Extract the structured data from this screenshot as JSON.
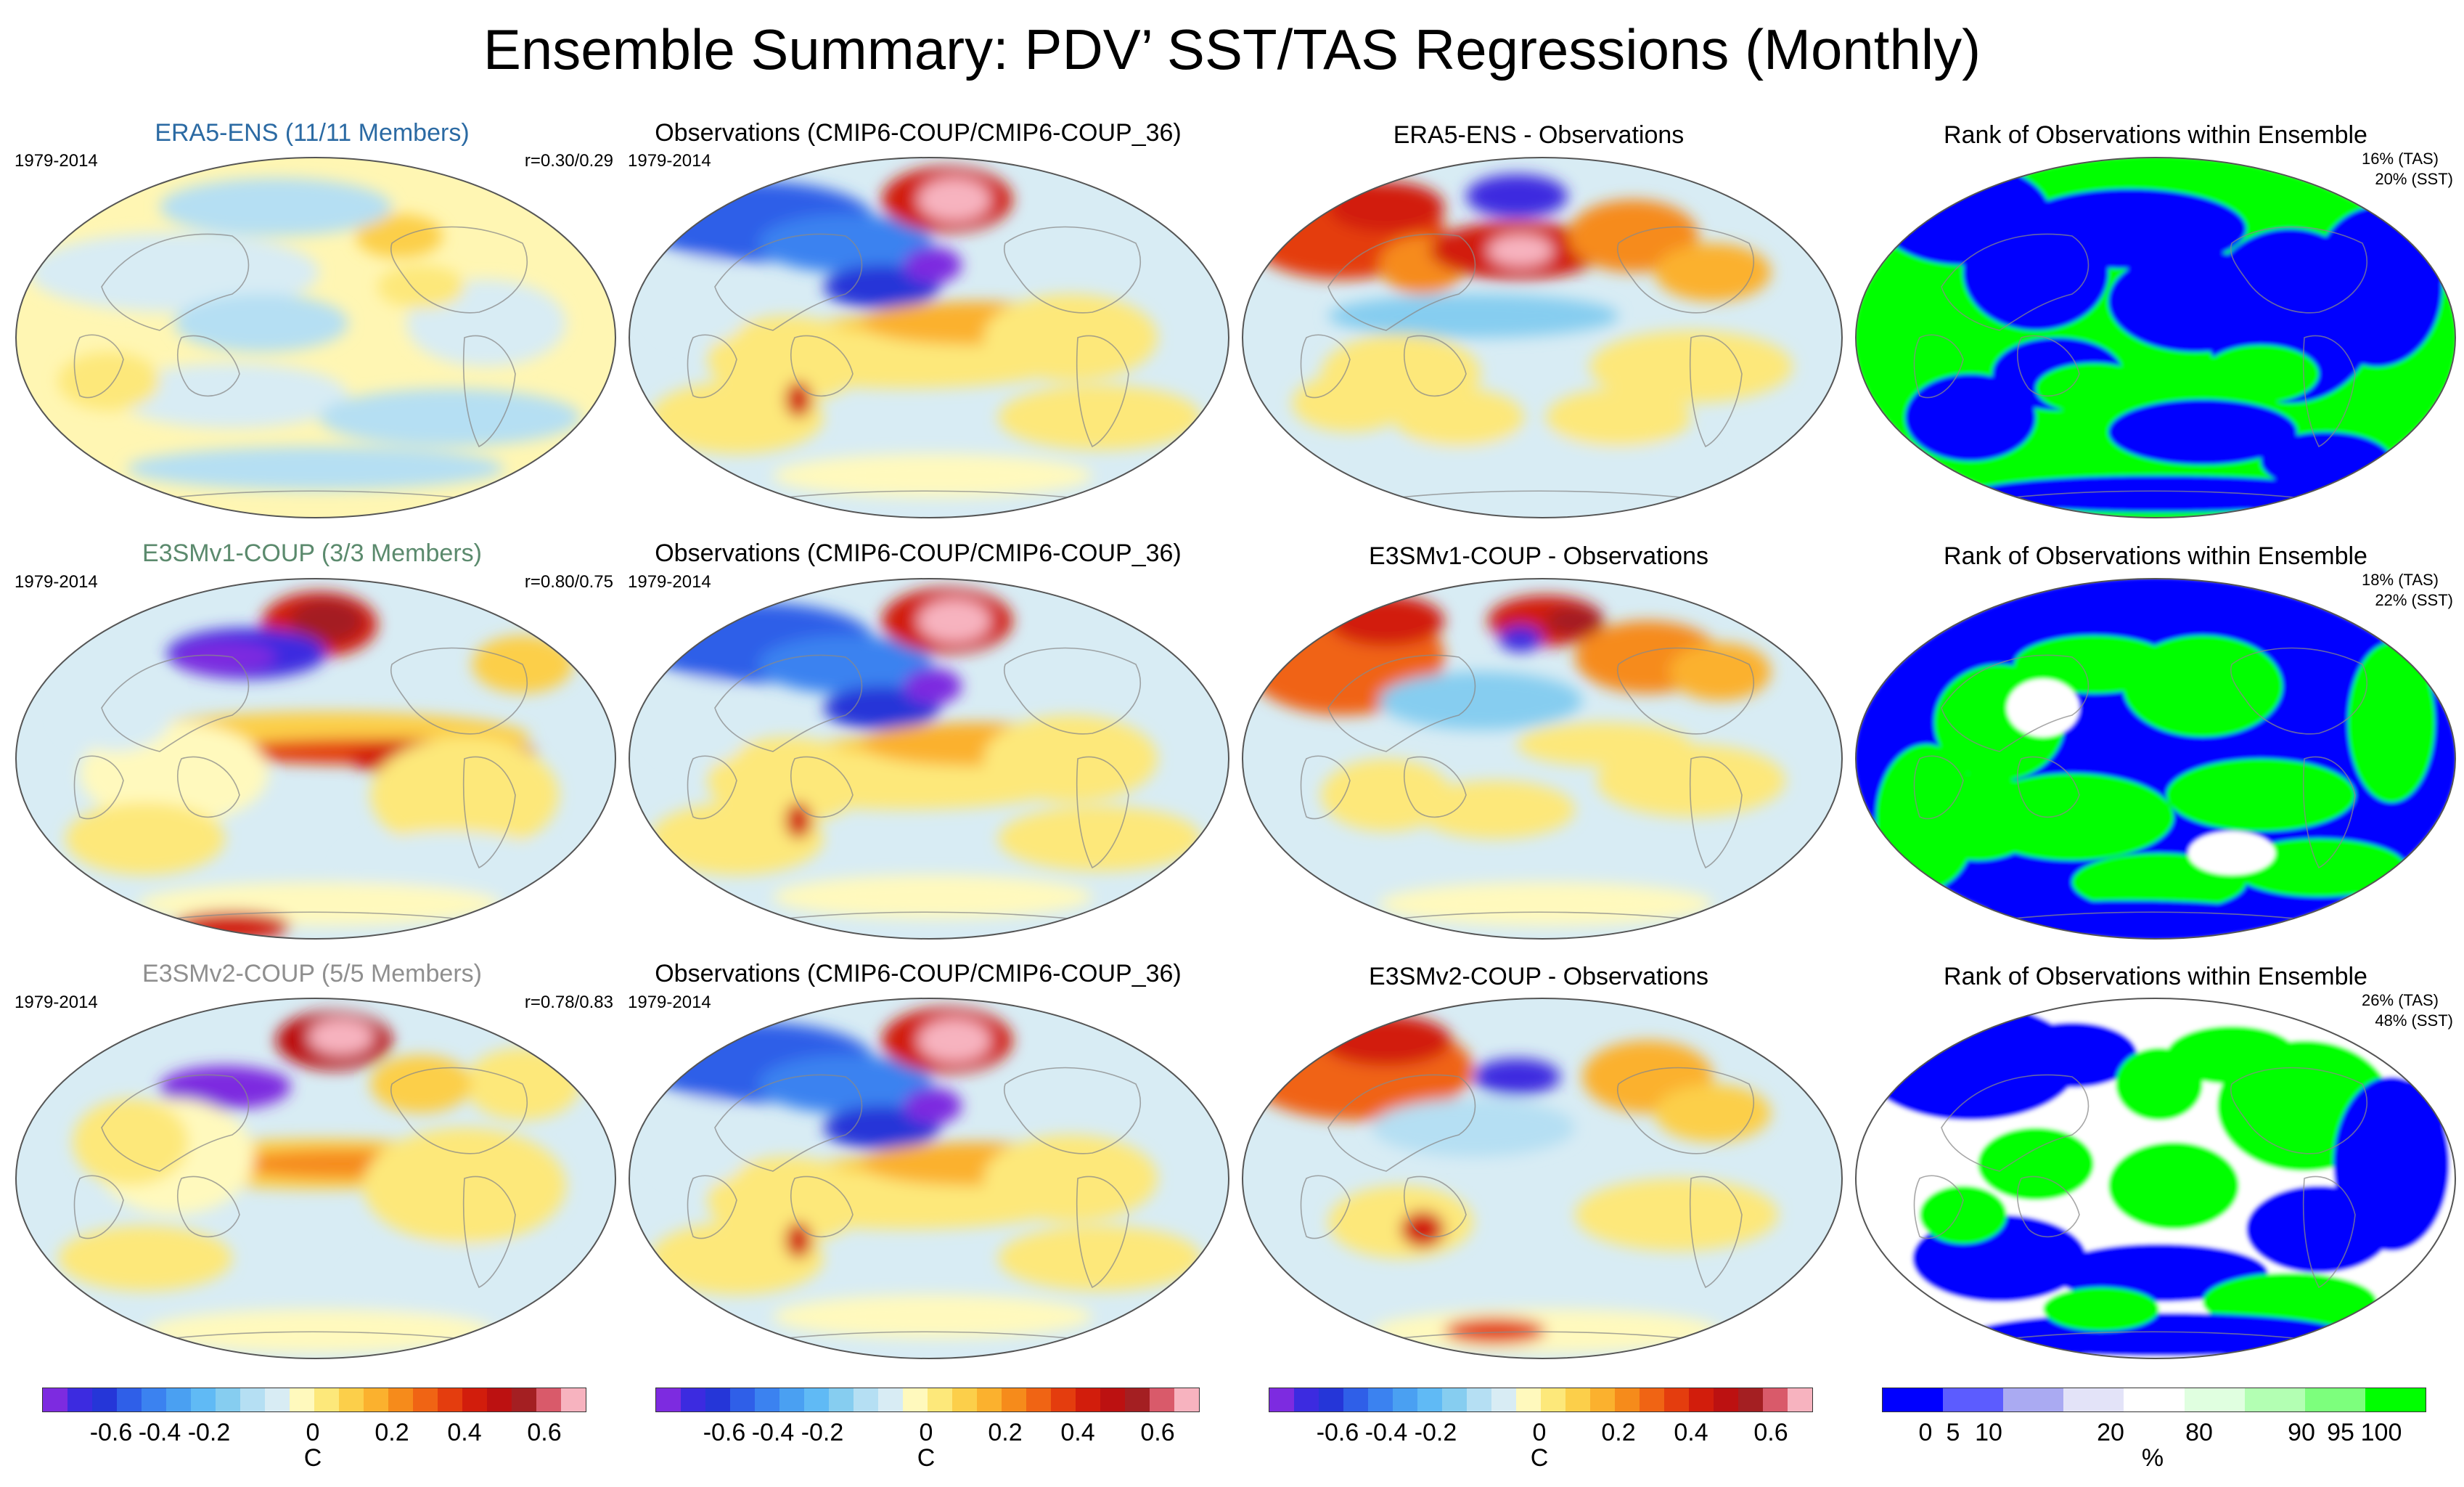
{
  "title": "Ensemble Summary: PDV’ SST/TAS Regressions (Monthly)",
  "colors": {
    "era5_title": "#2b6aa3",
    "e3smv1_title": "#5b8a6d",
    "e3smv2_title": "#8f8f8f",
    "black": "#000000"
  },
  "rows": [
    {
      "model_title": "ERA5-ENS (11/11 Members)",
      "model_period": "1979-2014",
      "model_corr": "r=0.30/0.29",
      "obs_title": "Observations (CMIP6-COUP/CMIP6-COUP_36)",
      "obs_period": "1979-2014",
      "diff_title": "ERA5-ENS - Observations",
      "rank_title": "Rank of Observations within Ensemble",
      "rank_tas": "16% (TAS)",
      "rank_sst": "20% (SST)"
    },
    {
      "model_title": "E3SMv1-COUP (3/3 Members)",
      "model_period": "1979-2014",
      "model_corr": "r=0.80/0.75",
      "obs_title": "Observations (CMIP6-COUP/CMIP6-COUP_36)",
      "obs_period": "1979-2014",
      "diff_title": "E3SMv1-COUP - Observations",
      "rank_title": "Rank of Observations within Ensemble",
      "rank_tas": "18% (TAS)",
      "rank_sst": "22% (SST)"
    },
    {
      "model_title": "E3SMv2-COUP (5/5 Members)",
      "model_period": "1979-2014",
      "model_corr": "r=0.78/0.83",
      "obs_title": "Observations (CMIP6-COUP/CMIP6-COUP_36)",
      "obs_period": "1979-2014",
      "diff_title": "E3SMv2-COUP - Observations",
      "rank_title": "Rank of Observations within Ensemble",
      "rank_tas": "26% (TAS)",
      "rank_sst": "48% (SST)"
    }
  ],
  "colorbars": {
    "temp_ticks": [
      "-0.6",
      "-0.4",
      "-0.2",
      "0",
      "0.2",
      "0.4",
      "0.6"
    ],
    "temp_units": "C",
    "rank_ticks": [
      "0",
      "5",
      "10",
      "20",
      "80",
      "90",
      "95",
      "100"
    ],
    "rank_units": "%"
  },
  "temp_palette": [
    "#7d2be0",
    "#3c2be0",
    "#2536d8",
    "#2f5fe8",
    "#3b82f0",
    "#4aa0f2",
    "#60baf5",
    "#86cdf0",
    "#b5dff3",
    "#d8ecf4",
    "#fff9bd",
    "#fde87a",
    "#fccf4a",
    "#fbb12e",
    "#f68b1b",
    "#f06414",
    "#e43d0e",
    "#d21d0c",
    "#bc1111",
    "#a41f22",
    "#d95a6a",
    "#f7b3bf"
  ],
  "rank_palette": [
    "#0000ff",
    "#5c5cff",
    "#aaaaf2",
    "#e3e3f8",
    "#ffffff",
    "#e0ffe0",
    "#b3ffb3",
    "#7dff7d",
    "#00ff00"
  ]
}
